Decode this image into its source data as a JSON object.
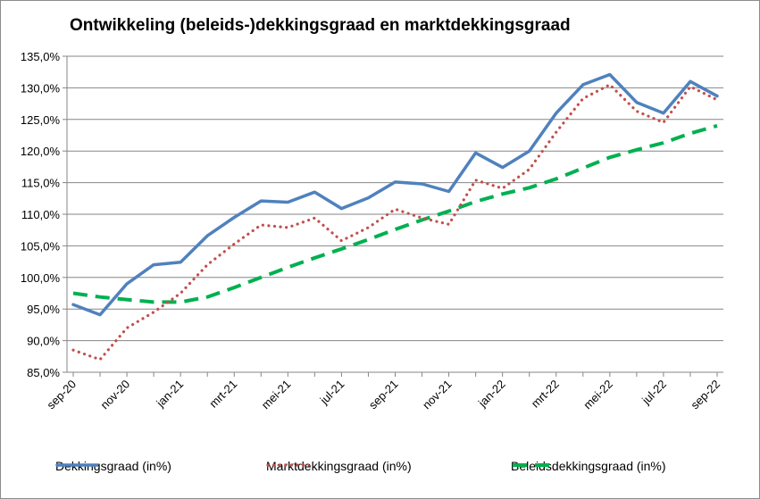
{
  "chart_data": {
    "type": "line",
    "title": "Ontwikkeling (beleids-)dekkingsgraad en marktdekkingsgraad",
    "xlabel": "",
    "ylabel": "",
    "ylim": [
      85,
      135
    ],
    "y_ticks": [
      "85,0%",
      "90,0%",
      "95,0%",
      "100,0%",
      "105,0%",
      "110,0%",
      "115,0%",
      "120,0%",
      "125,0%",
      "130,0%",
      "135,0%"
    ],
    "x": [
      "sep-20",
      "okt-20",
      "nov-20",
      "dec-20",
      "jan-21",
      "feb-21",
      "mrt-21",
      "apr-21",
      "mei-21",
      "jun-21",
      "jul-21",
      "aug-21",
      "sep-21",
      "okt-21",
      "nov-21",
      "dec-21",
      "jan-22",
      "feb-22",
      "mrt-22",
      "apr-22",
      "mei-22",
      "jun-22",
      "jul-22",
      "aug-22",
      "sep-22"
    ],
    "x_tick_labels": [
      "sep-20",
      "nov-20",
      "jan-21",
      "mrt-21",
      "mei-21",
      "jul-21",
      "sep-21",
      "nov-21",
      "jan-22",
      "mrt-22",
      "mei-22",
      "jul-22",
      "sep-22"
    ],
    "grid": true,
    "legend_position": "bottom",
    "series": [
      {
        "name": "Dekkingsgraad (in%)",
        "color": "#4f81bd",
        "style": "solid",
        "values": [
          95.7,
          94.1,
          99.0,
          102.0,
          102.4,
          106.6,
          109.5,
          112.1,
          111.9,
          113.5,
          110.9,
          112.6,
          115.1,
          114.8,
          113.6,
          119.7,
          117.4,
          120.0,
          126.0,
          130.5,
          132.1,
          127.7,
          126.0,
          131.0,
          128.7
        ]
      },
      {
        "name": "Marktdekkingsgraad (in%)",
        "color": "#c0504d",
        "style": "dotted",
        "values": [
          88.5,
          87.0,
          92.0,
          94.5,
          97.5,
          102.0,
          105.3,
          108.3,
          107.9,
          109.4,
          105.8,
          107.9,
          110.8,
          109.4,
          108.4,
          115.4,
          114.1,
          117.1,
          123.0,
          128.3,
          130.5,
          126.3,
          124.5,
          130.2,
          128.1
        ]
      },
      {
        "name": "Beleidsdekkingsgraad (in%)",
        "color": "#00b050",
        "style": "dashed",
        "values": [
          97.5,
          96.9,
          96.5,
          96.1,
          96.1,
          96.9,
          98.4,
          100.0,
          101.6,
          103.1,
          104.5,
          106.0,
          107.6,
          109.1,
          110.5,
          112.0,
          113.2,
          114.2,
          115.6,
          117.3,
          119.0,
          120.2,
          121.3,
          122.8,
          124.0
        ]
      }
    ]
  }
}
